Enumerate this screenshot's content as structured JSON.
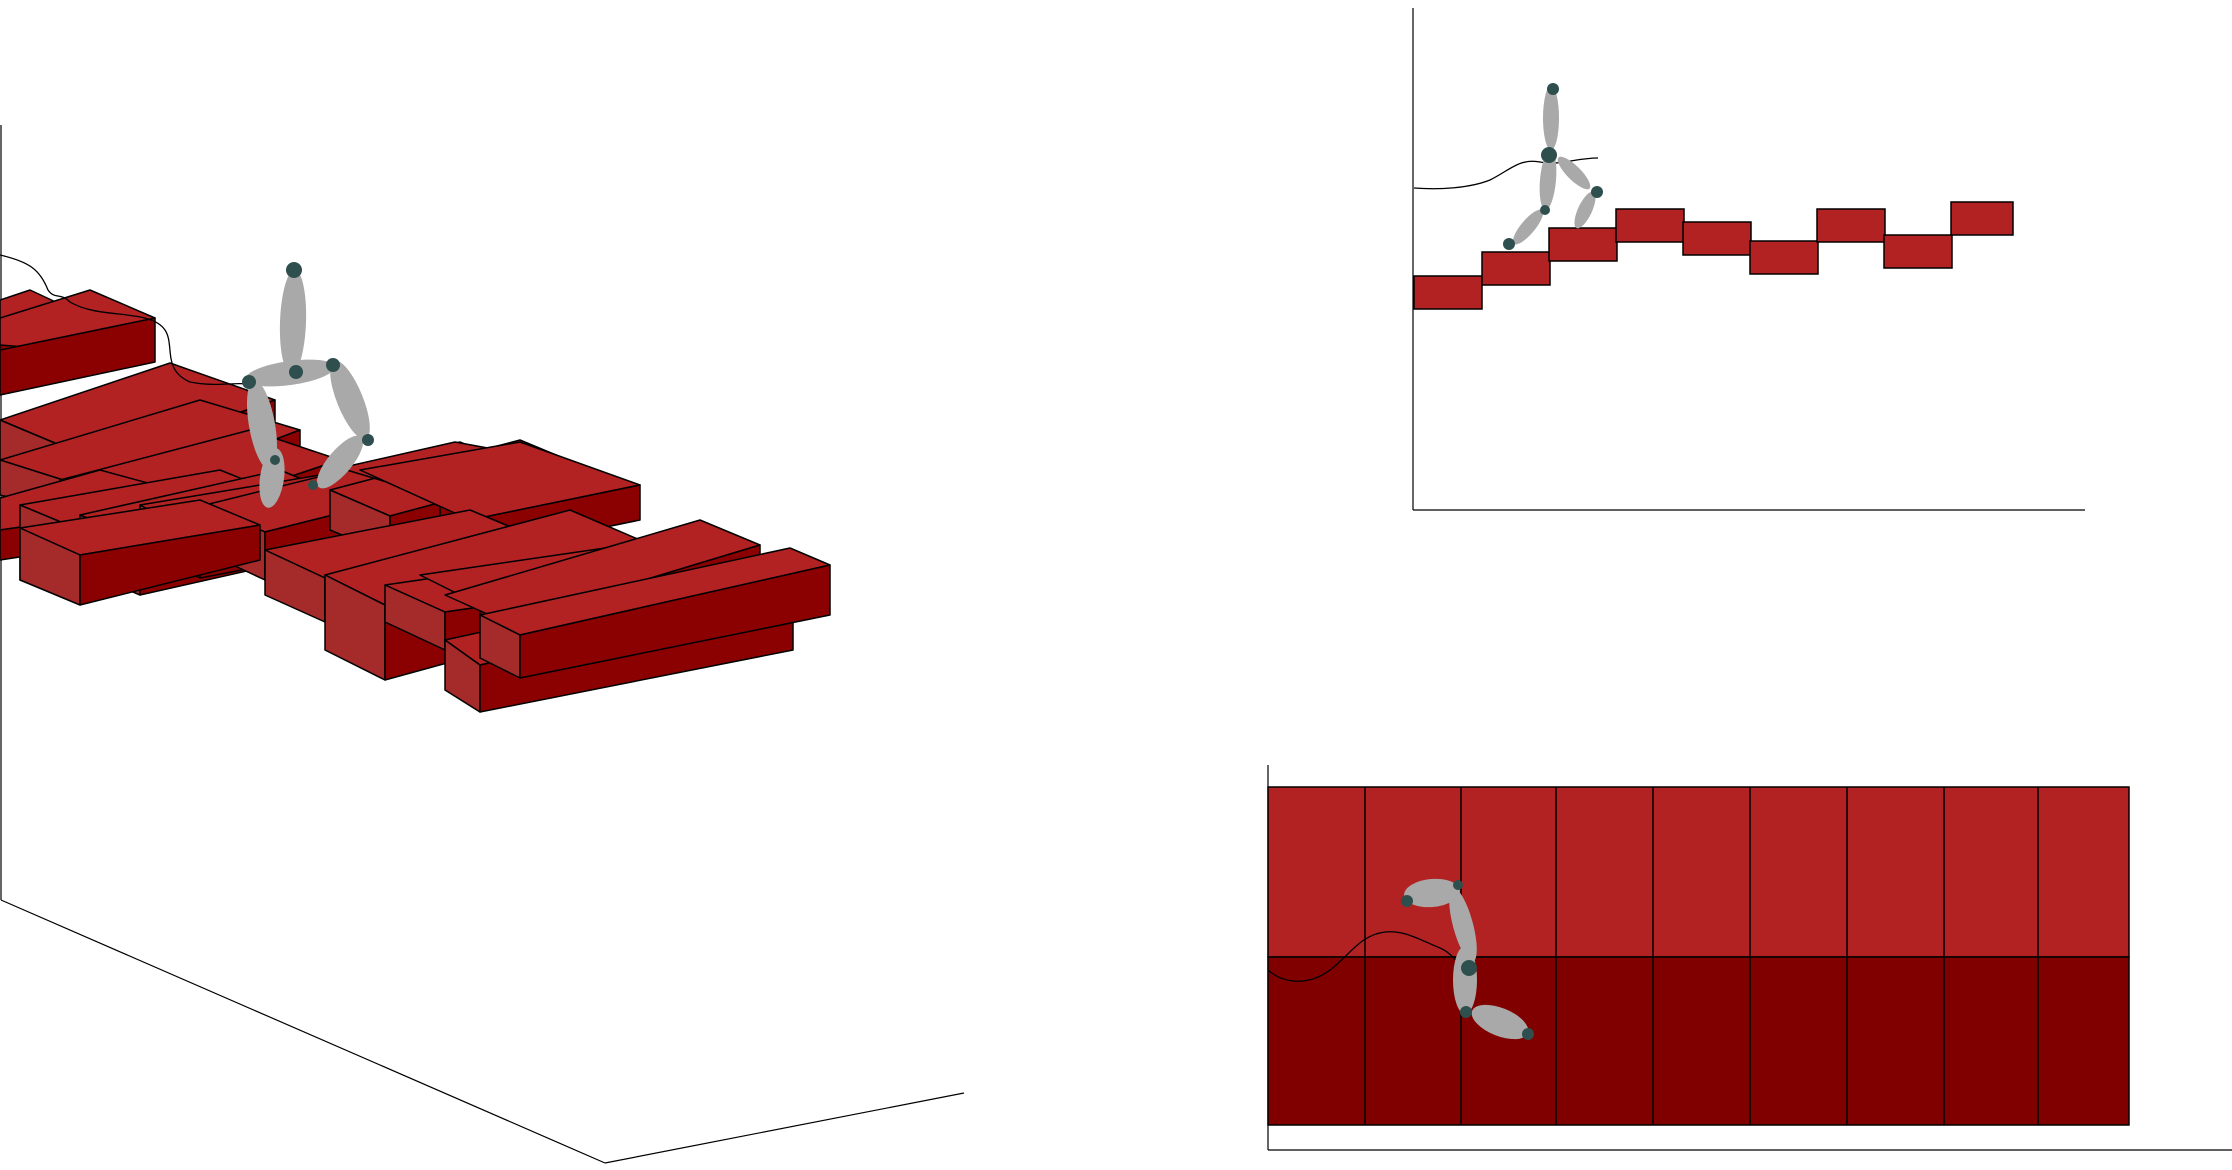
{
  "scene": {
    "description_text": "",
    "colors": {
      "background": "#ffffff",
      "block_top": "#b22222",
      "block_front": "#8b0000",
      "block_side": "#a52a2a",
      "block_edge": "#000000",
      "axis_line": "#000000",
      "robot_limb": "#a9a9a9",
      "robot_joint": "#2f4f4f",
      "trajectory": "#000000"
    }
  },
  "views": [
    {
      "name": "perspective-view",
      "icon": "cube-icon"
    },
    {
      "name": "side-view",
      "icon": "side-elevation-icon"
    },
    {
      "name": "top-view",
      "icon": "plan-view-icon"
    }
  ],
  "elements": {
    "robot": {
      "type": "bipedal-walker",
      "links": 5,
      "joints": 5
    },
    "terrain": {
      "type": "stepping-stone-stairs",
      "side_view_blocks": 9,
      "top_view_columns": 9
    },
    "trajectory": {
      "type": "hip-path"
    }
  }
}
